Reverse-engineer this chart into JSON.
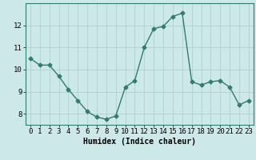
{
  "x": [
    0,
    1,
    2,
    3,
    4,
    5,
    6,
    7,
    8,
    9,
    10,
    11,
    12,
    13,
    14,
    15,
    16,
    17,
    18,
    19,
    20,
    21,
    22,
    23
  ],
  "y": [
    10.5,
    10.2,
    10.2,
    9.7,
    9.1,
    8.6,
    8.1,
    7.85,
    7.75,
    7.9,
    9.2,
    9.5,
    11.0,
    11.85,
    11.95,
    12.4,
    12.55,
    9.45,
    9.3,
    9.45,
    9.5,
    9.2,
    8.4,
    8.6
  ],
  "line_color": "#2e7d6e",
  "marker": "D",
  "marker_size": 2.5,
  "bg_color": "#cce8e8",
  "grid_color": "#aacccc",
  "xlabel": "Humidex (Indice chaleur)",
  "xlim": [
    -0.5,
    23.5
  ],
  "ylim": [
    7.5,
    13.0
  ],
  "yticks": [
    8,
    9,
    10,
    11,
    12
  ],
  "xticks": [
    0,
    1,
    2,
    3,
    4,
    5,
    6,
    7,
    8,
    9,
    10,
    11,
    12,
    13,
    14,
    15,
    16,
    17,
    18,
    19,
    20,
    21,
    22,
    23
  ],
  "xlabel_fontsize": 7,
  "tick_fontsize": 6.5
}
